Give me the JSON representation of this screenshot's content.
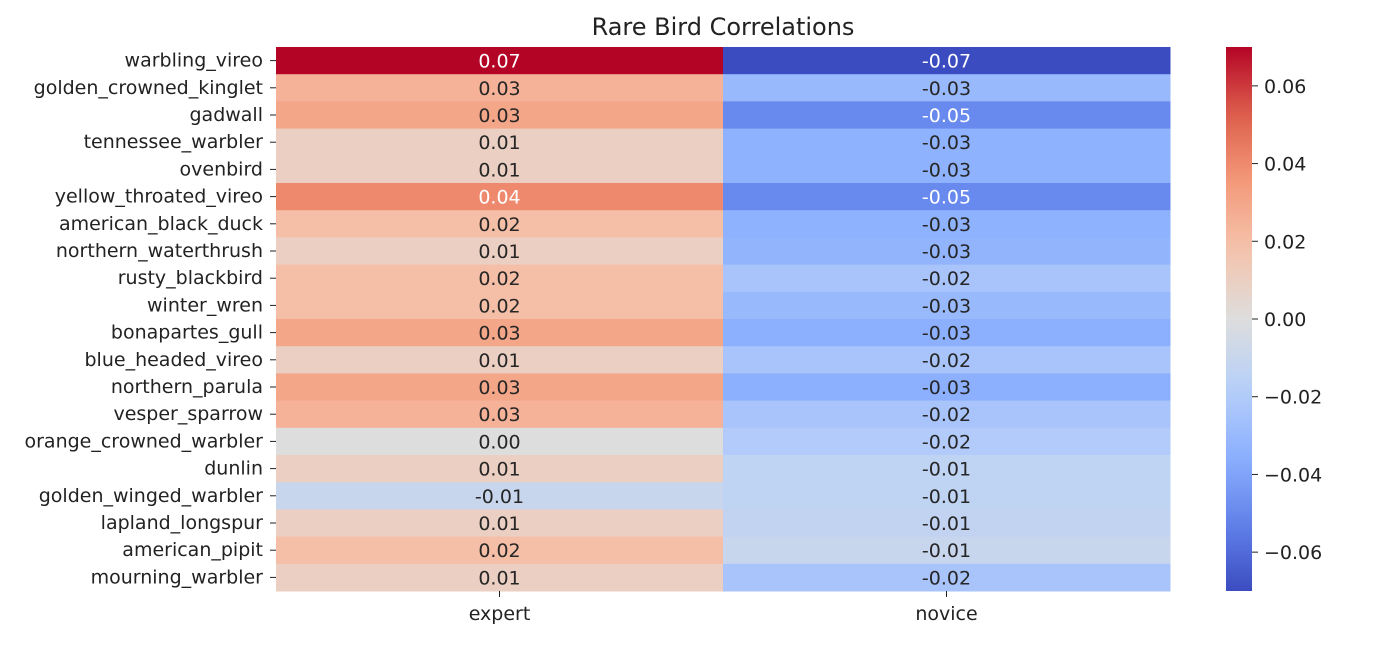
{
  "chart_data": {
    "type": "heatmap",
    "title": "Rare Bird Correlations",
    "xlabel": "",
    "ylabel": "",
    "colormap": "coolwarm",
    "vmin": -0.07,
    "vmax": 0.07,
    "columns": [
      "expert",
      "novice"
    ],
    "rows": [
      "warbling_vireo",
      "golden_crowned_kinglet",
      "gadwall",
      "tennessee_warbler",
      "ovenbird",
      "yellow_throated_vireo",
      "american_black_duck",
      "northern_waterthrush",
      "rusty_blackbird",
      "winter_wren",
      "bonapartes_gull",
      "blue_headed_vireo",
      "northern_parula",
      "vesper_sparrow",
      "orange_crowned_warbler",
      "dunlin",
      "golden_winged_warbler",
      "lapland_longspur",
      "american_pipit",
      "mourning_warbler"
    ],
    "values": [
      [
        0.07,
        -0.07
      ],
      [
        0.025,
        -0.03
      ],
      [
        0.03,
        -0.05
      ],
      [
        0.01,
        -0.034
      ],
      [
        0.01,
        -0.034
      ],
      [
        0.04,
        -0.05
      ],
      [
        0.02,
        -0.034
      ],
      [
        0.01,
        -0.033
      ],
      [
        0.02,
        -0.024
      ],
      [
        0.02,
        -0.03
      ],
      [
        0.03,
        -0.035
      ],
      [
        0.01,
        -0.024
      ],
      [
        0.03,
        -0.035
      ],
      [
        0.025,
        -0.024
      ],
      [
        0.0,
        -0.02
      ],
      [
        0.01,
        -0.014
      ],
      [
        -0.01,
        -0.014
      ],
      [
        0.01,
        -0.013
      ],
      [
        0.02,
        -0.01
      ],
      [
        0.01,
        -0.024
      ]
    ],
    "labels": [
      [
        "0.07",
        "-0.07"
      ],
      [
        "0.03",
        "-0.03"
      ],
      [
        "0.03",
        "-0.05"
      ],
      [
        "0.01",
        "-0.03"
      ],
      [
        "0.01",
        "-0.03"
      ],
      [
        "0.04",
        "-0.05"
      ],
      [
        "0.02",
        "-0.03"
      ],
      [
        "0.01",
        "-0.03"
      ],
      [
        "0.02",
        "-0.02"
      ],
      [
        "0.02",
        "-0.03"
      ],
      [
        "0.03",
        "-0.03"
      ],
      [
        "0.01",
        "-0.02"
      ],
      [
        "0.03",
        "-0.03"
      ],
      [
        "0.03",
        "-0.02"
      ],
      [
        "0.00",
        "-0.02"
      ],
      [
        "0.01",
        "-0.01"
      ],
      [
        "-0.01",
        "-0.01"
      ],
      [
        "0.01",
        "-0.01"
      ],
      [
        "0.02",
        "-0.01"
      ],
      [
        "0.01",
        "-0.02"
      ]
    ],
    "colorbar_ticks": [
      0.06,
      0.04,
      0.02,
      0.0,
      -0.02,
      -0.04,
      -0.06
    ],
    "colorbar_tick_labels": [
      "0.06",
      "0.04",
      "0.02",
      "0.00",
      "−0.02",
      "−0.04",
      "−0.06"
    ]
  }
}
